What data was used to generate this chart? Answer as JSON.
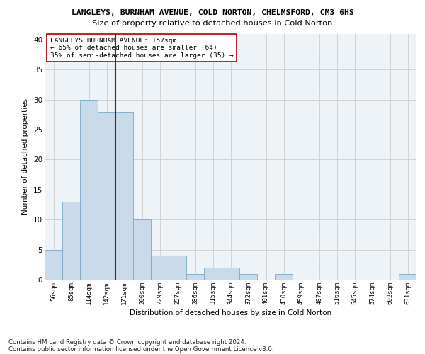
{
  "title1": "LANGLEYS, BURNHAM AVENUE, COLD NORTON, CHELMSFORD, CM3 6HS",
  "title2": "Size of property relative to detached houses in Cold Norton",
  "xlabel": "Distribution of detached houses by size in Cold Norton",
  "ylabel": "Number of detached properties",
  "categories": [
    "56sqm",
    "85sqm",
    "114sqm",
    "142sqm",
    "171sqm",
    "200sqm",
    "229sqm",
    "257sqm",
    "286sqm",
    "315sqm",
    "344sqm",
    "372sqm",
    "401sqm",
    "430sqm",
    "459sqm",
    "487sqm",
    "516sqm",
    "545sqm",
    "574sqm",
    "602sqm",
    "631sqm"
  ],
  "values": [
    5,
    13,
    30,
    28,
    28,
    10,
    4,
    4,
    1,
    2,
    2,
    1,
    0,
    1,
    0,
    0,
    0,
    0,
    0,
    0,
    1
  ],
  "bar_color": "#c9daea",
  "bar_edge_color": "#7aa8c7",
  "grid_color": "#cccccc",
  "vline_color": "#aa0000",
  "annotation_line1": "LANGLEYS BURNHAM AVENUE: 157sqm",
  "annotation_line2": "← 65% of detached houses are smaller (64)",
  "annotation_line3": "35% of semi-detached houses are larger (35) →",
  "annotation_box_color": "#ffffff",
  "annotation_box_edge": "#aa0000",
  "ylim": [
    0,
    41
  ],
  "yticks": [
    0,
    5,
    10,
    15,
    20,
    25,
    30,
    35,
    40
  ],
  "footer1": "Contains HM Land Registry data © Crown copyright and database right 2024.",
  "footer2": "Contains public sector information licensed under the Open Government Licence v3.0.",
  "bg_color": "#ffffff",
  "plot_bg_color": "#eef3f8"
}
